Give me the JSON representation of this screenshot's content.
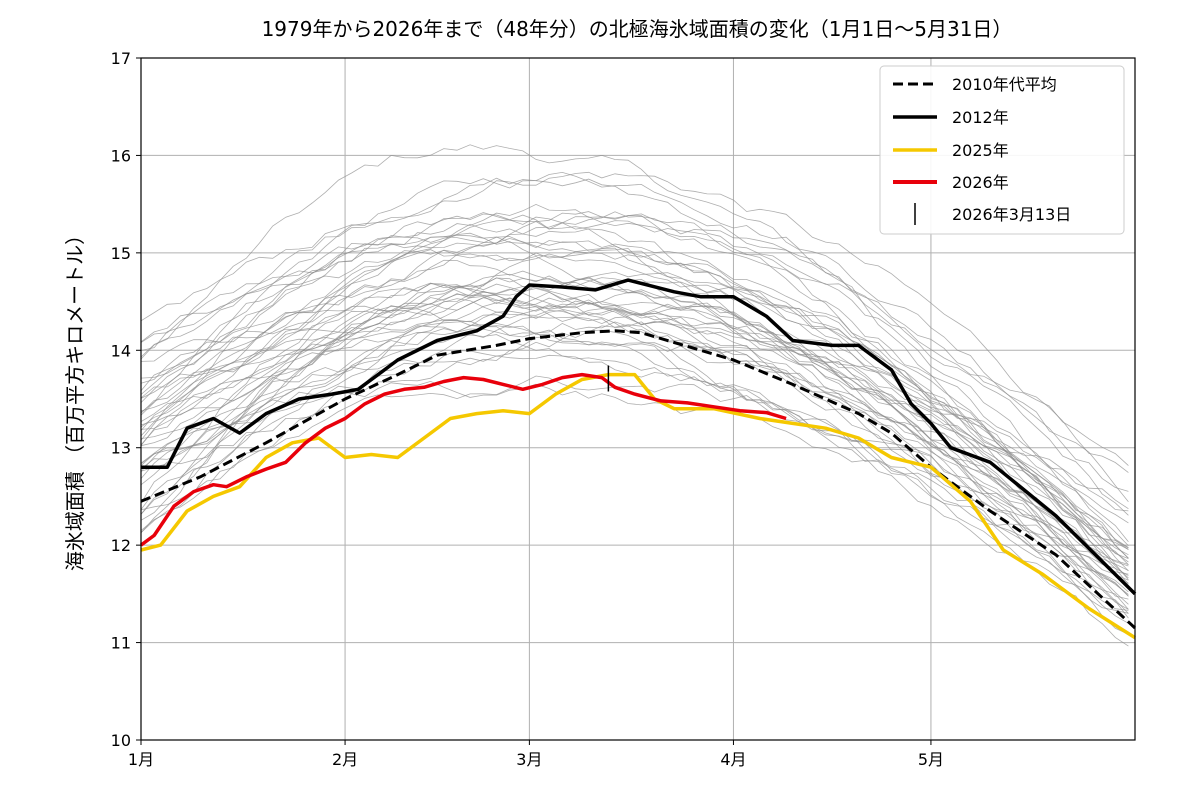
{
  "chart_data": {
    "type": "line",
    "title": "1979年から2026年まで（48年分）の北極海氷域面積の変化（1月1日〜5月31日）",
    "ylabel": "海氷域面積 （百万平方キロメートル）",
    "xlabel": "",
    "ylim": [
      10,
      17
    ],
    "yticks": [
      10,
      11,
      12,
      13,
      14,
      15,
      16,
      17
    ],
    "xlim": [
      1,
      152
    ],
    "xticks": [
      {
        "day": 1,
        "label": "1月"
      },
      {
        "day": 32,
        "label": "2月"
      },
      {
        "day": 60,
        "label": "3月"
      },
      {
        "day": 91,
        "label": "4月"
      },
      {
        "day": 121,
        "label": "5月"
      }
    ],
    "grid": true,
    "legend_position": "top-right",
    "background_years_note": "gray lines: 1979–2024 individual years",
    "series": [
      {
        "name": "2010年代平均",
        "style": "dashed",
        "color": "#000000",
        "points": [
          [
            1,
            12.45
          ],
          [
            10,
            12.7
          ],
          [
            20,
            13.05
          ],
          [
            32,
            13.5
          ],
          [
            40,
            13.75
          ],
          [
            46,
            13.95
          ],
          [
            55,
            14.05
          ],
          [
            60,
            14.12
          ],
          [
            68,
            14.18
          ],
          [
            73,
            14.2
          ],
          [
            77,
            14.18
          ],
          [
            82,
            14.08
          ],
          [
            91,
            13.9
          ],
          [
            100,
            13.65
          ],
          [
            110,
            13.35
          ],
          [
            115,
            13.15
          ],
          [
            121,
            12.8
          ],
          [
            130,
            12.35
          ],
          [
            140,
            11.9
          ],
          [
            152,
            11.15
          ]
        ]
      },
      {
        "name": "2012年",
        "style": "solid",
        "color": "#000000",
        "points": [
          [
            1,
            12.8
          ],
          [
            5,
            12.8
          ],
          [
            8,
            13.2
          ],
          [
            12,
            13.3
          ],
          [
            16,
            13.15
          ],
          [
            20,
            13.35
          ],
          [
            25,
            13.5
          ],
          [
            30,
            13.55
          ],
          [
            34,
            13.6
          ],
          [
            40,
            13.9
          ],
          [
            46,
            14.1
          ],
          [
            52,
            14.2
          ],
          [
            56,
            14.35
          ],
          [
            58,
            14.55
          ],
          [
            60,
            14.67
          ],
          [
            65,
            14.65
          ],
          [
            70,
            14.62
          ],
          [
            75,
            14.72
          ],
          [
            82,
            14.6
          ],
          [
            86,
            14.55
          ],
          [
            91,
            14.55
          ],
          [
            96,
            14.35
          ],
          [
            100,
            14.1
          ],
          [
            106,
            14.05
          ],
          [
            110,
            14.05
          ],
          [
            115,
            13.8
          ],
          [
            118,
            13.45
          ],
          [
            121,
            13.25
          ],
          [
            124,
            13.0
          ],
          [
            130,
            12.85
          ],
          [
            140,
            12.3
          ],
          [
            152,
            11.5
          ]
        ]
      },
      {
        "name": "2025年",
        "style": "solid",
        "color": "#F5C800",
        "points": [
          [
            1,
            11.95
          ],
          [
            4,
            12.0
          ],
          [
            8,
            12.35
          ],
          [
            12,
            12.5
          ],
          [
            16,
            12.6
          ],
          [
            20,
            12.9
          ],
          [
            24,
            13.05
          ],
          [
            28,
            13.1
          ],
          [
            32,
            12.9
          ],
          [
            36,
            12.93
          ],
          [
            40,
            12.9
          ],
          [
            44,
            13.1
          ],
          [
            48,
            13.3
          ],
          [
            52,
            13.35
          ],
          [
            56,
            13.38
          ],
          [
            60,
            13.35
          ],
          [
            64,
            13.55
          ],
          [
            68,
            13.7
          ],
          [
            72,
            13.75
          ],
          [
            76,
            13.75
          ],
          [
            79,
            13.5
          ],
          [
            82,
            13.4
          ],
          [
            88,
            13.4
          ],
          [
            95,
            13.3
          ],
          [
            100,
            13.25
          ],
          [
            105,
            13.2
          ],
          [
            110,
            13.1
          ],
          [
            115,
            12.9
          ],
          [
            121,
            12.8
          ],
          [
            127,
            12.45
          ],
          [
            132,
            11.95
          ],
          [
            138,
            11.7
          ],
          [
            145,
            11.35
          ],
          [
            152,
            11.05
          ]
        ]
      },
      {
        "name": "2026年",
        "style": "solid",
        "color": "#E8000B",
        "points": [
          [
            1,
            12.0
          ],
          [
            3,
            12.1
          ],
          [
            6,
            12.4
          ],
          [
            9,
            12.55
          ],
          [
            12,
            12.62
          ],
          [
            14,
            12.6
          ],
          [
            17,
            12.7
          ],
          [
            20,
            12.78
          ],
          [
            23,
            12.85
          ],
          [
            26,
            13.05
          ],
          [
            29,
            13.2
          ],
          [
            32,
            13.3
          ],
          [
            35,
            13.45
          ],
          [
            38,
            13.55
          ],
          [
            41,
            13.6
          ],
          [
            44,
            13.62
          ],
          [
            47,
            13.68
          ],
          [
            50,
            13.72
          ],
          [
            53,
            13.7
          ],
          [
            56,
            13.65
          ],
          [
            59,
            13.6
          ],
          [
            62,
            13.65
          ],
          [
            65,
            13.72
          ],
          [
            68,
            13.75
          ],
          [
            71,
            13.72
          ],
          [
            73,
            13.62
          ],
          [
            76,
            13.55
          ],
          [
            80,
            13.48
          ],
          [
            84,
            13.46
          ],
          [
            88,
            13.42
          ],
          [
            92,
            13.38
          ],
          [
            96,
            13.36
          ],
          [
            99,
            13.3
          ]
        ]
      }
    ],
    "marker": {
      "name": "2026年3月13日",
      "day": 72,
      "value": 13.7
    }
  }
}
